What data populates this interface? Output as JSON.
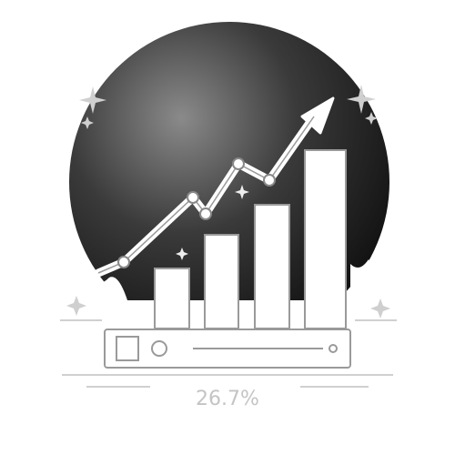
{
  "caption": "26.7%"
}
